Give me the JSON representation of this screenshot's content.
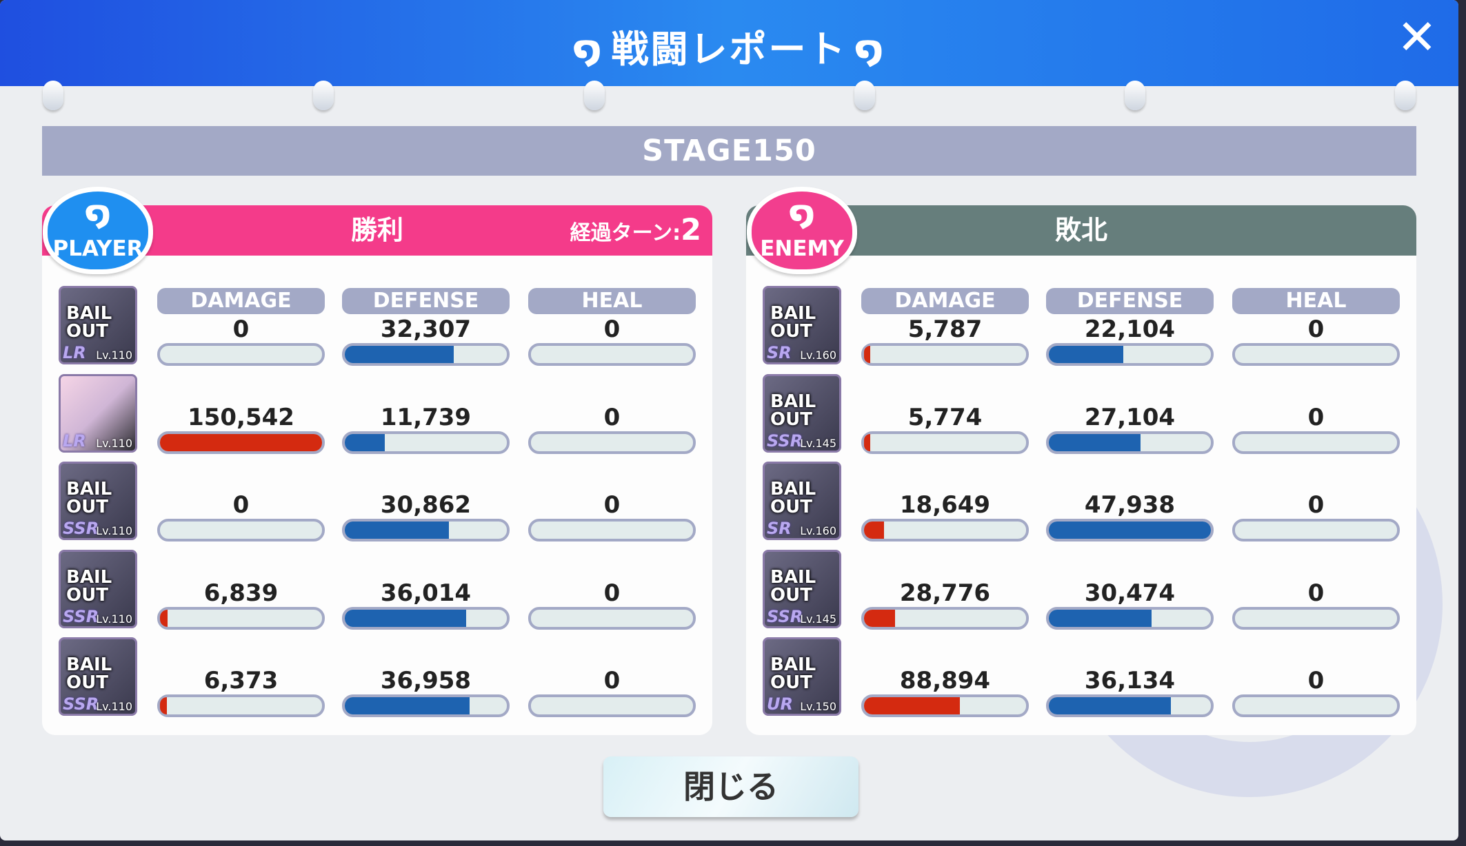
{
  "title": "戦闘レポート",
  "close_icon": "close-x-icon",
  "stage": "STAGE150",
  "labels": {
    "damage": "DAMAGE",
    "defense": "DEFENSE",
    "heal": "HEAL"
  },
  "colors": {
    "player": "#f43b8a",
    "enemy": "#667e7c",
    "damage_bar": "#d42a10",
    "defense_bar": "#1e63b0",
    "header_blue": "#2a7af0"
  },
  "player": {
    "badge": "PLAYER",
    "result": "勝利",
    "turn_label": "経過ターン:",
    "turn_value": "2",
    "units": [
      {
        "icon": "BAIL OUT",
        "rarity": "LR",
        "level": "Lv.110",
        "damage": "0",
        "defense": "32,307",
        "heal": "0",
        "damage_fill": 0,
        "defense_fill": 0.674,
        "heal_fill": 0
      },
      {
        "icon": "",
        "rarity": "LR",
        "level": "Lv.110",
        "damage": "150,542",
        "defense": "11,739",
        "heal": "0",
        "damage_fill": 1.0,
        "defense_fill": 0.245,
        "heal_fill": 0
      },
      {
        "icon": "BAIL OUT",
        "rarity": "SSR",
        "level": "Lv.110",
        "damage": "0",
        "defense": "30,862",
        "heal": "0",
        "damage_fill": 0,
        "defense_fill": 0.644,
        "heal_fill": 0
      },
      {
        "icon": "BAIL OUT",
        "rarity": "SSR",
        "level": "Lv.110",
        "damage": "6,839",
        "defense": "36,014",
        "heal": "0",
        "damage_fill": 0.045,
        "defense_fill": 0.751,
        "heal_fill": 0
      },
      {
        "icon": "BAIL OUT",
        "rarity": "SSR",
        "level": "Lv.110",
        "damage": "6,373",
        "defense": "36,958",
        "heal": "0",
        "damage_fill": 0.042,
        "defense_fill": 0.771,
        "heal_fill": 0
      }
    ]
  },
  "enemy": {
    "badge": "ENEMY",
    "result": "敗北",
    "units": [
      {
        "icon": "BAIL OUT",
        "rarity": "SR",
        "level": "Lv.160",
        "damage": "5,787",
        "defense": "22,104",
        "heal": "0",
        "damage_fill": 0.038,
        "defense_fill": 0.461,
        "heal_fill": 0
      },
      {
        "icon": "BAIL OUT",
        "rarity": "SSR",
        "level": "Lv.145",
        "damage": "5,774",
        "defense": "27,104",
        "heal": "0",
        "damage_fill": 0.038,
        "defense_fill": 0.565,
        "heal_fill": 0
      },
      {
        "icon": "BAIL OUT",
        "rarity": "SR",
        "level": "Lv.160",
        "damage": "18,649",
        "defense": "47,938",
        "heal": "0",
        "damage_fill": 0.124,
        "defense_fill": 1.0,
        "heal_fill": 0
      },
      {
        "icon": "BAIL OUT",
        "rarity": "SSR",
        "level": "Lv.145",
        "damage": "28,776",
        "defense": "30,474",
        "heal": "0",
        "damage_fill": 0.191,
        "defense_fill": 0.636,
        "heal_fill": 0
      },
      {
        "icon": "BAIL OUT",
        "rarity": "UR",
        "level": "Lv.150",
        "damage": "88,894",
        "defense": "36,134",
        "heal": "0",
        "damage_fill": 0.59,
        "defense_fill": 0.754,
        "heal_fill": 0
      }
    ]
  },
  "close_button": "閉じる"
}
